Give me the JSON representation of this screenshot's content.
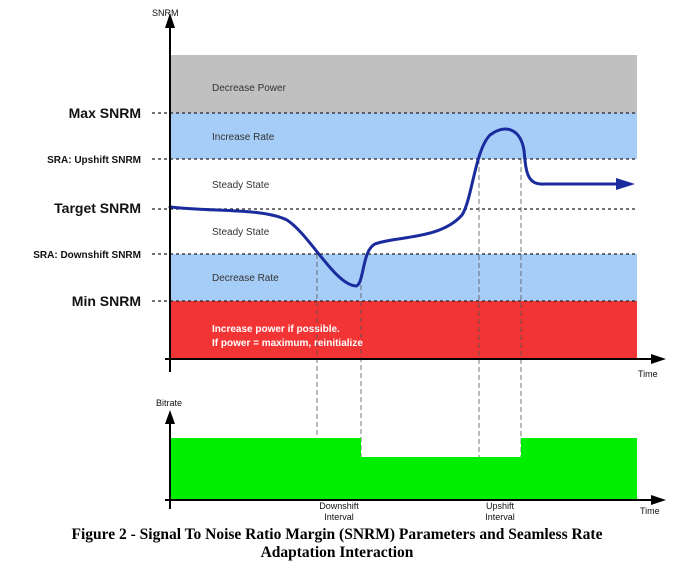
{
  "top_chart": {
    "y_axis_label": "SNRM",
    "x_axis_label": "Time",
    "levels": {
      "max": "Max SNRM",
      "upshift": "SRA: Upshift SNRM",
      "target": "Target SNRM",
      "downshift": "SRA: Downshift SNRM",
      "min": "Min SNRM"
    },
    "zones": {
      "decrease_power": "Decrease Power",
      "increase_rate": "Increase Rate",
      "steady_upper": "Steady State",
      "steady_lower": "Steady State",
      "decrease_rate": "Decrease Rate",
      "increase_power_line1": "Increase power if possible.",
      "increase_power_line2": "If power = maximum, reinitialize"
    },
    "colors": {
      "decrease_power": "#c0c0c0",
      "increase_rate": "#a6cdf7",
      "decrease_rate": "#a6cdf7",
      "increase_power": "#f23434",
      "snrm_curve": "#1a2b9e"
    }
  },
  "bottom_chart": {
    "y_axis_label": "Bitrate",
    "x_axis_label": "Time",
    "downshift_line1": "Downshift",
    "downshift_line2": "Interval",
    "upshift_line1": "Upshift",
    "upshift_line2": "Interval",
    "colors": {
      "bitrate": "#00ee00"
    }
  },
  "caption": {
    "line1": "Figure 2 - Signal To Noise Ratio Margin (SNRM) Parameters and Seamless Rate",
    "line2": "Adaptation Interaction"
  }
}
